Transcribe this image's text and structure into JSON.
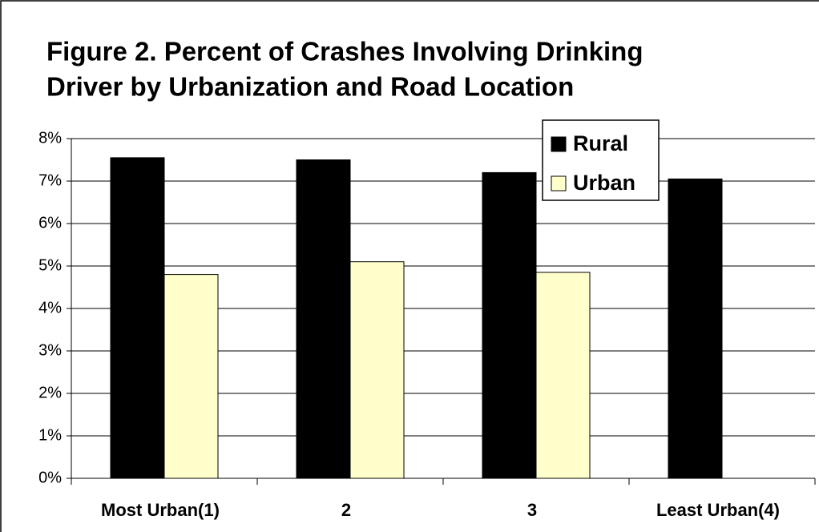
{
  "chart_data": {
    "type": "bar",
    "title_lines": [
      "Figure 2.  Percent of Crashes Involving Drinking",
      "Driver by Urbanization and Road Location"
    ],
    "categories": [
      "Most Urban(1)",
      "2",
      "3",
      "Least Urban(4)"
    ],
    "series": [
      {
        "name": "Rural",
        "color": "#000000",
        "values": [
          7.55,
          7.5,
          7.2,
          7.05
        ]
      },
      {
        "name": "Urban",
        "color": "#ffffcc",
        "values": [
          4.8,
          5.1,
          4.85,
          null
        ]
      }
    ],
    "ylim": [
      0,
      8
    ],
    "yticks": [
      {
        "value": 0,
        "label": "0%"
      },
      {
        "value": 1,
        "label": "1%"
      },
      {
        "value": 2,
        "label": "2%"
      },
      {
        "value": 3,
        "label": "3%"
      },
      {
        "value": 4,
        "label": "4%"
      },
      {
        "value": 5,
        "label": "5%"
      },
      {
        "value": 6,
        "label": "6%"
      },
      {
        "value": 7,
        "label": "7%"
      },
      {
        "value": 8,
        "label": "8%"
      }
    ],
    "grid": true,
    "legend": "top-right"
  }
}
